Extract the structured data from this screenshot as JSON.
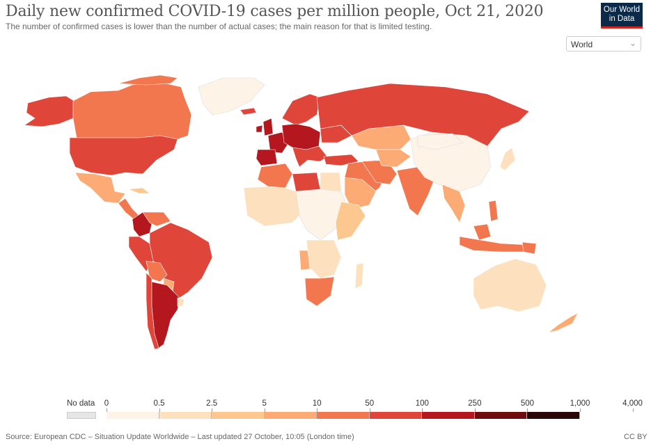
{
  "header": {
    "title": "Daily new confirmed COVID-19 cases per million people, Oct 21, 2020",
    "subtitle": "The number of confirmed cases is lower than the number of actual cases; the main reason for that is limited testing."
  },
  "logo": {
    "line1": "Our World",
    "line2": "in Data"
  },
  "region_selector": {
    "value": "World"
  },
  "legend": {
    "no_data_label": "No data",
    "labels": [
      "0",
      "0.5",
      "2.5",
      "5",
      "10",
      "50",
      "100",
      "250",
      "500",
      "1,000",
      "4,000"
    ],
    "colors": [
      "#fdf3e6",
      "#fde0be",
      "#fcc88f",
      "#fbab73",
      "#f2774f",
      "#e0453a",
      "#b5171f",
      "#6e0c0e",
      "#2a0606"
    ]
  },
  "footer": {
    "source": "Source: European CDC – Situation Update Worldwide – Last updated 27 October, 10:05 (London time)",
    "license": "CC BY"
  },
  "icons": {
    "selector_chevron": "chevron-down-icon"
  }
}
